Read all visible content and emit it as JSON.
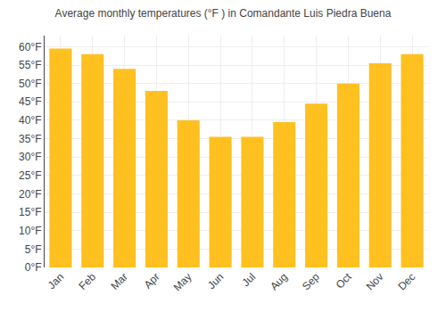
{
  "chart_data": {
    "type": "bar",
    "title": "Average monthly temperatures (°F ) in Comandante Luis Piedra Buena",
    "categories": [
      "Jan",
      "Feb",
      "Mar",
      "Apr",
      "May",
      "Jun",
      "Jul",
      "Aug",
      "Sep",
      "Oct",
      "Nov",
      "Dec"
    ],
    "values": [
      59.5,
      58.0,
      54.0,
      48.0,
      40.0,
      35.5,
      35.5,
      39.5,
      44.5,
      50.0,
      55.5,
      58.0
    ],
    "color": "#FFC020",
    "ylim": [
      0,
      63
    ],
    "yticks": [
      {
        "value": 0,
        "label": "0°F"
      },
      {
        "value": 5,
        "label": "5°F"
      },
      {
        "value": 10,
        "label": "10°F"
      },
      {
        "value": 15,
        "label": "15°F"
      },
      {
        "value": 20,
        "label": "20°F"
      },
      {
        "value": 25,
        "label": "25°F"
      },
      {
        "value": 30,
        "label": "30°F"
      },
      {
        "value": 35,
        "label": "35°F"
      },
      {
        "value": 40,
        "label": "40°F"
      },
      {
        "value": 45,
        "label": "45°F"
      },
      {
        "value": 50,
        "label": "50°F"
      },
      {
        "value": 55,
        "label": "55°F"
      },
      {
        "value": 60,
        "label": "60°F"
      }
    ],
    "grid": true
  }
}
